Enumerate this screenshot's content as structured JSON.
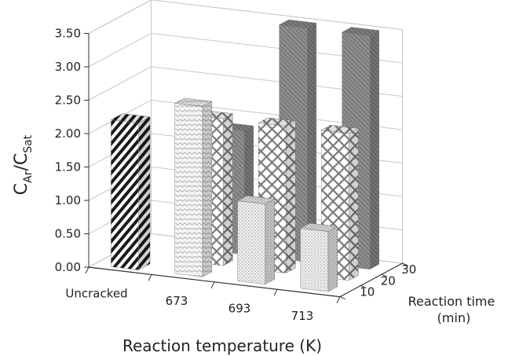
{
  "chart_data": {
    "type": "bar",
    "style": "3d",
    "title": "",
    "ylabel_main": "C",
    "ylabel_sub1": "Ar",
    "ylabel_sep": "/C",
    "ylabel_sub2": "Sat",
    "xlabel": "Reaction temperature (K)",
    "zlabel_line1": "Reaction time",
    "zlabel_line2": "(min)",
    "ylim": [
      0,
      3.5
    ],
    "yticks": [
      "0.00",
      "0.50",
      "1.00",
      "1.50",
      "2.00",
      "2.50",
      "3.00",
      "3.50"
    ],
    "categories": [
      "Uncracked",
      "673",
      "693",
      "713"
    ],
    "depth_categories": [
      "10",
      "20",
      "30"
    ],
    "grid": true,
    "series": [
      {
        "name": "10",
        "values": [
          2.2,
          2.55,
          1.2,
          0.9
        ]
      },
      {
        "name": "20",
        "values": [
          null,
          2.2,
          2.2,
          2.2
        ]
      },
      {
        "name": "30",
        "values": [
          null,
          1.85,
          3.5,
          3.5
        ]
      }
    ],
    "colors": {
      "uncracked": "#1a1a1a",
      "t10": "#b8b8b8",
      "t20": "#9a9a9a",
      "t30": "#6e6e6e",
      "grid": "#c8c8c8",
      "axis": "#333333"
    }
  }
}
